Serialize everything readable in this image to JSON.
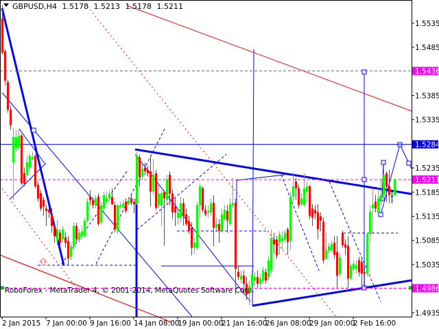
{
  "header": {
    "menu_icon": "triangle-down-icon",
    "symbol": "GBPUSD,H4",
    "open": "1.5178",
    "high": "1.5213",
    "low": "1.5178",
    "close": "1.5211"
  },
  "watermark": "RoboForex - MetaTrader 4, © 2001-2014, MetaQuotes Software Corp.",
  "colors": {
    "background": "#ffffff",
    "bull": "#00ff00",
    "bear": "#ff0000",
    "doji": "#000000",
    "level_magenta": "#ff00ff",
    "level_blue": "#0000ff",
    "trendline_blue": "#0000ff",
    "trendline_red": "#ff0000"
  },
  "chart_data": {
    "type": "candlestick",
    "symbol": "GBPUSD",
    "timeframe": "H4",
    "y_ticks": [
      "1.5535",
      "1.5485",
      "1.5385",
      "1.5335",
      "1.5235",
      "1.5185",
      "1.5135",
      "1.5085",
      "1.5035",
      "1.4935"
    ],
    "ylim": [
      1.4927,
      1.5583
    ],
    "x_ticks": [
      "2 Jan 2015",
      "7 Jan 00:00",
      "9 Jan 16:00",
      "14 Jan 08:00",
      "19 Jan 00:00",
      "21 Jan 16:00",
      "26 Jan 08:00",
      "29 Jan 00:00",
      "2 Feb 16:00"
    ],
    "levels": [
      {
        "price": "1.5436",
        "color": "#ff00ff",
        "style": "dashed"
      },
      {
        "price": "1.5284",
        "color": "#0000ff",
        "style": "solid"
      },
      {
        "price": "1.5211",
        "color": "#ff00ff",
        "style": "dashed"
      },
      {
        "price": "1.4986",
        "color": "#ff00ff",
        "style": "dashed"
      }
    ],
    "ohlc": [
      [
        1.5545,
        1.5572,
        1.547,
        1.5474
      ],
      [
        1.5477,
        1.5481,
        1.5406,
        1.5416
      ],
      [
        1.5413,
        1.5417,
        1.5349,
        1.5356
      ],
      [
        1.5356,
        1.5363,
        1.5314,
        1.5324
      ],
      [
        1.5246,
        1.5318,
        1.5169,
        1.5299
      ],
      [
        1.5275,
        1.5314,
        1.5268,
        1.5299
      ],
      [
        1.5278,
        1.5316,
        1.5271,
        1.5302
      ],
      [
        1.5302,
        1.5306,
        1.52,
        1.5203
      ],
      [
        1.5224,
        1.5236,
        1.5197,
        1.5203
      ],
      [
        1.5221,
        1.526,
        1.5217,
        1.5247
      ],
      [
        1.5236,
        1.5264,
        1.5228,
        1.526
      ],
      [
        1.5254,
        1.5268,
        1.525,
        1.5258
      ],
      [
        1.526,
        1.5264,
        1.5193,
        1.5197
      ],
      [
        1.52,
        1.5207,
        1.5165,
        1.5172
      ],
      [
        1.5183,
        1.5189,
        1.5146,
        1.5151
      ],
      [
        1.5169,
        1.5175,
        1.5136,
        1.5155
      ],
      [
        1.5151,
        1.5158,
        1.5115,
        1.5146
      ],
      [
        1.5148,
        1.5153,
        1.5132,
        1.5143
      ],
      [
        1.5139,
        1.5151,
        1.5101,
        1.5115
      ],
      [
        1.5115,
        1.5122,
        1.508,
        1.5094
      ],
      [
        1.5084,
        1.5126,
        1.5075,
        1.5108
      ],
      [
        1.5101,
        1.5108,
        1.5073,
        1.508
      ],
      [
        1.5087,
        1.5115,
        1.508,
        1.5108
      ],
      [
        1.5091,
        1.5101,
        1.507,
        1.508
      ],
      [
        1.5084,
        1.5094,
        1.5033,
        1.5048
      ],
      [
        1.5051,
        1.508,
        1.5044,
        1.5073
      ],
      [
        1.5073,
        1.5122,
        1.5065,
        1.5115
      ],
      [
        1.5115,
        1.5122,
        1.5082,
        1.5087
      ],
      [
        1.5087,
        1.5108,
        1.508,
        1.5101
      ],
      [
        1.5094,
        1.5115,
        1.5087,
        1.5104
      ],
      [
        1.5094,
        1.5132,
        1.509,
        1.5126
      ],
      [
        1.5126,
        1.5172,
        1.5122,
        1.5165
      ],
      [
        1.5176,
        1.5189,
        1.5158,
        1.5168
      ],
      [
        1.5168,
        1.5175,
        1.5151,
        1.5158
      ],
      [
        1.5158,
        1.5179,
        1.5151,
        1.5172
      ],
      [
        1.5176,
        1.5182,
        1.5115,
        1.5119
      ],
      [
        1.5122,
        1.5165,
        1.5118,
        1.5158
      ],
      [
        1.5151,
        1.5186,
        1.5143,
        1.5179
      ],
      [
        1.5165,
        1.5186,
        1.516,
        1.5172
      ],
      [
        1.5172,
        1.5189,
        1.5165,
        1.5182
      ],
      [
        1.5175,
        1.5193,
        1.5158,
        1.516
      ],
      [
        1.5158,
        1.5165,
        1.5101,
        1.5108
      ],
      [
        1.5104,
        1.516,
        1.5098,
        1.5158
      ],
      [
        1.5155,
        1.5165,
        1.5151,
        1.5158
      ],
      [
        1.5155,
        1.5169,
        1.5151,
        1.5162
      ],
      [
        1.5165,
        1.5172,
        1.5141,
        1.5146
      ],
      [
        1.516,
        1.5175,
        1.5158,
        1.5168
      ],
      [
        1.5172,
        1.5179,
        1.5158,
        1.5163
      ],
      [
        1.5165,
        1.5172,
        1.5141,
        1.516
      ],
      [
        1.516,
        1.5268,
        1.5158,
        1.526
      ],
      [
        1.5257,
        1.5263,
        1.5197,
        1.5217
      ],
      [
        1.5217,
        1.5243,
        1.5211,
        1.5233
      ],
      [
        1.5236,
        1.5246,
        1.5221,
        1.5228
      ],
      [
        1.5231,
        1.524,
        1.5217,
        1.5224
      ],
      [
        1.5228,
        1.526,
        1.5155,
        1.5186
      ],
      [
        1.5186,
        1.5254,
        1.5179,
        1.5221
      ],
      [
        1.5224,
        1.5231,
        1.5148,
        1.5153
      ],
      [
        1.5158,
        1.52,
        1.5151,
        1.5182
      ],
      [
        1.5158,
        1.5189,
        1.5115,
        1.5183
      ],
      [
        1.5185,
        1.5189,
        1.5074,
        1.5172
      ],
      [
        1.5169,
        1.5221,
        1.516,
        1.5211
      ],
      [
        1.5221,
        1.5228,
        1.5158,
        1.5182
      ],
      [
        1.5182,
        1.519,
        1.5129,
        1.5143
      ],
      [
        1.5155,
        1.5172,
        1.5115,
        1.5143
      ],
      [
        1.5132,
        1.5151,
        1.5118,
        1.5143
      ],
      [
        1.5132,
        1.5176,
        1.5122,
        1.5162
      ],
      [
        1.5162,
        1.5172,
        1.5116,
        1.5136
      ],
      [
        1.5139,
        1.5151,
        1.5115,
        1.5119
      ],
      [
        1.5125,
        1.5136,
        1.5098,
        1.5105
      ],
      [
        1.5111,
        1.5122,
        1.5054,
        1.507
      ],
      [
        1.507,
        1.509,
        1.5056,
        1.508
      ],
      [
        1.507,
        1.5165,
        1.5065,
        1.5158
      ],
      [
        1.5158,
        1.5203,
        1.5133,
        1.5197
      ],
      [
        1.5193,
        1.5197,
        1.5143,
        1.5148
      ],
      [
        1.5148,
        1.5158,
        1.5135,
        1.5139
      ],
      [
        1.5143,
        1.5158,
        1.5132,
        1.5146
      ],
      [
        1.5143,
        1.5172,
        1.5136,
        1.5162
      ],
      [
        1.5163,
        1.5179,
        1.5073,
        1.5111
      ],
      [
        1.5111,
        1.5132,
        1.5105,
        1.5119
      ],
      [
        1.5119,
        1.5129,
        1.508,
        1.5105
      ],
      [
        1.5105,
        1.5151,
        1.5101,
        1.5139
      ],
      [
        1.5129,
        1.5158,
        1.5125,
        1.5148
      ],
      [
        1.5146,
        1.5158,
        1.5101,
        1.5126
      ],
      [
        1.5119,
        1.5172,
        1.5115,
        1.516
      ],
      [
        1.5158,
        1.5214,
        1.5153,
        1.5162
      ],
      [
        1.5163,
        1.5172,
        1.4973,
        1.5026
      ],
      [
        1.502,
        1.5033,
        1.5002,
        1.5009
      ],
      [
        1.5004,
        1.5023,
        1.4995,
        1.5012
      ],
      [
        1.5012,
        1.5023,
        1.4973,
        1.4995
      ],
      [
        1.4995,
        1.5009,
        1.4962,
        1.4973
      ],
      [
        1.4976,
        1.5002,
        1.4951,
        1.499
      ],
      [
        1.499,
        1.5023,
        1.498,
        1.5016
      ],
      [
        1.5002,
        1.5019,
        1.499,
        1.5009
      ],
      [
        1.5009,
        1.5023,
        1.4987,
        1.4995
      ],
      [
        1.4995,
        1.5016,
        1.4987,
        1.5006
      ],
      [
        1.5002,
        1.503,
        1.4995,
        1.5023
      ],
      [
        1.5019,
        1.5027,
        1.4995,
        1.5002
      ],
      [
        1.5009,
        1.5051,
        1.5002,
        1.5044
      ],
      [
        1.5023,
        1.5108,
        1.5016,
        1.509
      ],
      [
        1.5087,
        1.5101,
        1.5058,
        1.5077
      ],
      [
        1.5087,
        1.5094,
        1.5047,
        1.5054
      ],
      [
        1.508,
        1.5104,
        1.5055,
        1.5097
      ],
      [
        1.5084,
        1.5104,
        1.5065,
        1.509
      ],
      [
        1.5087,
        1.5108,
        1.508,
        1.5101
      ],
      [
        1.5108,
        1.5112,
        1.5055,
        1.5082
      ],
      [
        1.5084,
        1.5186,
        1.5064,
        1.5176
      ],
      [
        1.5176,
        1.5226,
        1.5165,
        1.5197
      ],
      [
        1.5207,
        1.5214,
        1.5169,
        1.5193
      ],
      [
        1.5193,
        1.52,
        1.5151,
        1.5158
      ],
      [
        1.516,
        1.5183,
        1.5155,
        1.5172
      ],
      [
        1.5158,
        1.5224,
        1.5155,
        1.5193
      ],
      [
        1.5186,
        1.5207,
        1.5165,
        1.5197
      ],
      [
        1.5197,
        1.52,
        1.5129,
        1.5136
      ],
      [
        1.5151,
        1.516,
        1.5115,
        1.5132
      ],
      [
        1.5148,
        1.5158,
        1.5129,
        1.5141
      ],
      [
        1.5143,
        1.516,
        1.5087,
        1.5108
      ],
      [
        1.5135,
        1.5143,
        1.5104,
        1.5126
      ],
      [
        1.5124,
        1.5132,
        1.5037,
        1.5044
      ],
      [
        1.5047,
        1.5101,
        1.5044,
        1.5065
      ],
      [
        1.5063,
        1.508,
        1.5058,
        1.5073
      ],
      [
        1.5065,
        1.5084,
        1.5061,
        1.5078
      ],
      [
        1.508,
        1.5094,
        1.5047,
        1.5055
      ],
      [
        1.5061,
        1.5094,
        1.4987,
        1.5012
      ],
      [
        1.5016,
        1.5058,
        1.5009,
        1.505
      ],
      [
        1.5101,
        1.5105,
        1.507,
        1.5075
      ],
      [
        1.5077,
        1.5087,
        1.5055,
        1.507
      ],
      [
        1.5074,
        1.5094,
        1.4987,
        1.5006
      ],
      [
        1.5006,
        1.5037,
        1.5002,
        1.5033
      ],
      [
        1.5026,
        1.5044,
        1.5021,
        1.5037
      ],
      [
        1.5026,
        1.5044,
        1.5016,
        1.5034
      ],
      [
        1.5044,
        1.5051,
        1.501,
        1.5019
      ],
      [
        1.504,
        1.5047,
        1.4987,
        1.5016
      ],
      [
        1.5019,
        1.503,
        1.4987,
        1.5016
      ],
      [
        1.5016,
        1.5101,
        1.501,
        1.5098
      ],
      [
        1.5098,
        1.5158,
        1.508,
        1.5145
      ],
      [
        1.5151,
        1.5193,
        1.5101,
        1.516
      ],
      [
        1.5165,
        1.5179,
        1.5143,
        1.5151
      ],
      [
        1.5143,
        1.5193,
        1.5141,
        1.5172
      ],
      [
        1.5168,
        1.5211,
        1.5158,
        1.5179
      ],
      [
        1.5179,
        1.5247,
        1.5158,
        1.5221
      ],
      [
        1.5224,
        1.5228,
        1.5165,
        1.5197
      ],
      [
        1.5197,
        1.5231,
        1.5162,
        1.5179
      ],
      [
        1.5177,
        1.5189,
        1.5162,
        1.5177
      ],
      [
        1.5178,
        1.5213,
        1.5178,
        1.5211
      ]
    ]
  }
}
